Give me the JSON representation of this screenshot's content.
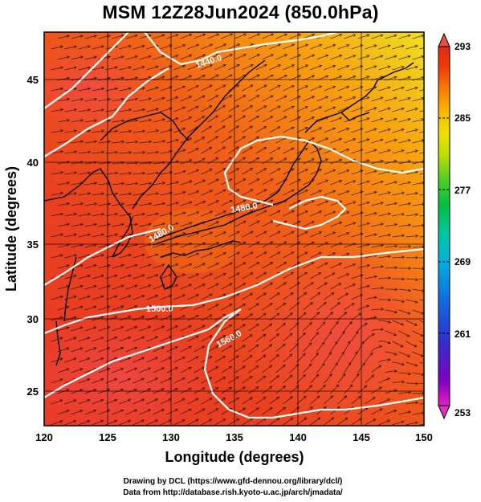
{
  "title": "MSM 12Z28Jun2024 (850.0hPa)",
  "x_axis": {
    "label": "Longitude (degrees)",
    "ticks": [
      "120",
      "125",
      "130",
      "135",
      "140",
      "145",
      "150"
    ],
    "tick_values": [
      120,
      125,
      130,
      135,
      140,
      145,
      150
    ],
    "range": [
      120,
      150
    ]
  },
  "y_axis": {
    "label": "Latitude  (degrees)",
    "ticks": [
      "25",
      "30",
      "35",
      "40",
      "45"
    ],
    "tick_values": [
      25,
      30,
      35,
      40,
      45
    ],
    "range": [
      22.4,
      47.6
    ]
  },
  "colorbar": {
    "labels": [
      "293",
      "285",
      "277",
      "269",
      "261",
      "253"
    ],
    "values": [
      293,
      285,
      277,
      269,
      261,
      253
    ],
    "range": [
      253,
      293
    ],
    "colors": [
      "#e020c0",
      "#8000c0",
      "#3030d0",
      "#1070e0",
      "#00b0e0",
      "#00c8a0",
      "#00c040",
      "#60d020",
      "#c0e000",
      "#f0e000",
      "#f8b800",
      "#f88000",
      "#f04000",
      "#e02818"
    ]
  },
  "contours": {
    "labels": [
      "1440.0",
      "1480.0",
      "1480.0",
      "1500.0",
      "1560.0"
    ],
    "color": "#ffffff"
  },
  "credits": {
    "line1": "Drawing by DCL (https://www.gfd-dennou.org/library/dcl/)",
    "line2": "Data from http://database.rish.kyoto-u.ac.jp/arch/jmadata/"
  }
}
